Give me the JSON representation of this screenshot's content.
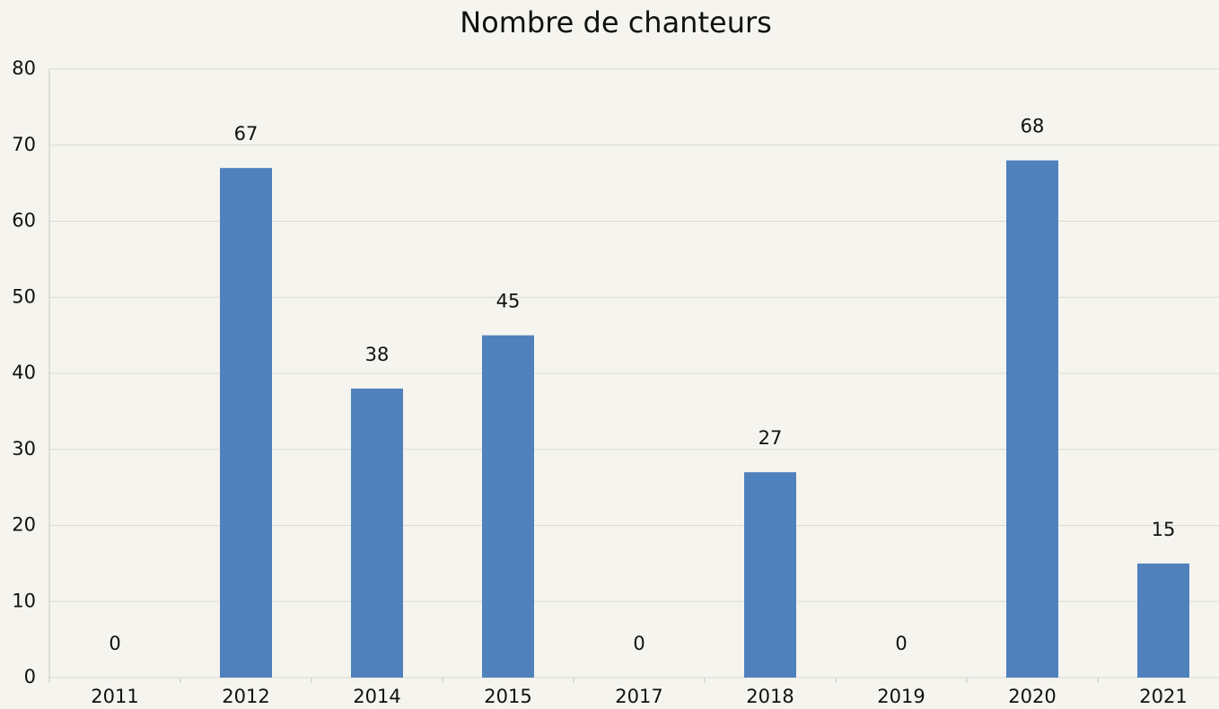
{
  "chart_data": {
    "type": "bar",
    "title": "Nombre de chanteurs",
    "categories": [
      "2011",
      "2012",
      "2014",
      "2015",
      "2017",
      "2018",
      "2019",
      "2020",
      "2021"
    ],
    "values": [
      0,
      67,
      38,
      45,
      0,
      27,
      0,
      68,
      15
    ],
    "color": "#4f81bd",
    "ylim": [
      0,
      80
    ],
    "yticks": [
      0,
      10,
      20,
      30,
      40,
      50,
      60,
      70,
      80
    ],
    "grid": true,
    "data_labels": true
  }
}
